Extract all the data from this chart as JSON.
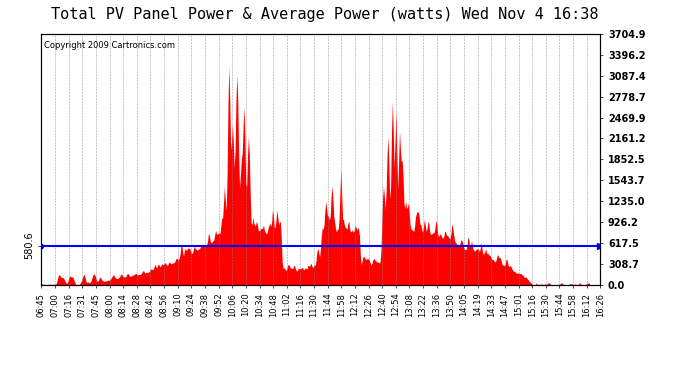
{
  "title": "Total PV Panel Power & Average Power (watts) Wed Nov 4 16:38",
  "copyright": "Copyright 2009 Cartronics.com",
  "average_power": 580.6,
  "y_max": 3704.9,
  "y_min": 0.0,
  "y_ticks": [
    0.0,
    308.7,
    617.5,
    926.2,
    1235.0,
    1543.7,
    1852.5,
    2161.2,
    2469.9,
    2778.7,
    3087.4,
    3396.2,
    3704.9
  ],
  "background_color": "#ffffff",
  "plot_bg_color": "#ffffff",
  "fill_color": "#ff0000",
  "line_color": "#0000ff",
  "grid_color": "#aaaaaa",
  "title_fontsize": 11,
  "x_tick_labels": [
    "06:45",
    "07:00",
    "07:16",
    "07:31",
    "07:45",
    "08:00",
    "08:14",
    "08:28",
    "08:42",
    "08:56",
    "09:10",
    "09:24",
    "09:38",
    "09:52",
    "10:06",
    "10:20",
    "10:34",
    "10:48",
    "11:02",
    "11:16",
    "11:30",
    "11:44",
    "11:58",
    "12:12",
    "12:26",
    "12:40",
    "12:54",
    "13:08",
    "13:22",
    "13:36",
    "13:50",
    "14:05",
    "14:19",
    "14:33",
    "14:47",
    "15:01",
    "15:16",
    "15:30",
    "15:44",
    "15:58",
    "16:12",
    "16:26"
  ],
  "n_points": 630
}
